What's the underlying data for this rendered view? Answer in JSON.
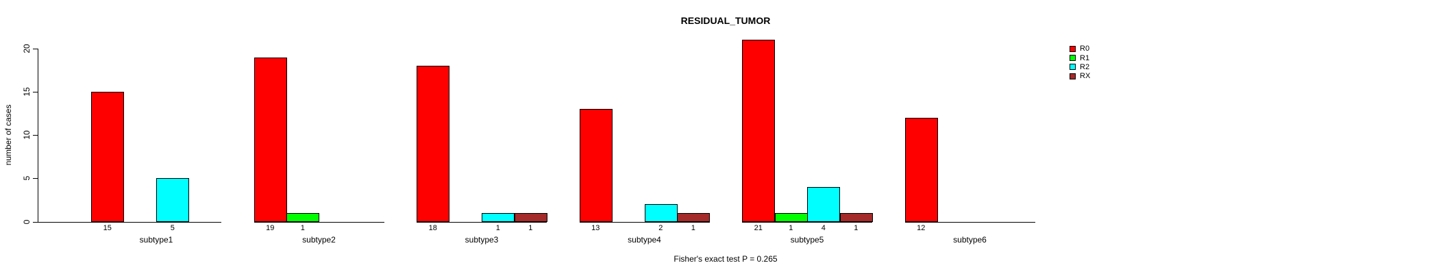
{
  "title": "RESIDUAL_TUMOR",
  "annotation": "Fisher's exact test P = 0.265",
  "chart_data": {
    "type": "bar",
    "title": "RESIDUAL_TUMOR",
    "xlabel": "",
    "ylabel": "number of cases",
    "annotation": "Fisher's exact test P = 0.265",
    "categories": [
      "subtype1",
      "subtype2",
      "subtype3",
      "subtype4",
      "subtype5",
      "subtype6"
    ],
    "series": [
      {
        "name": "R0",
        "color": "#FF0000",
        "values": [
          15,
          19,
          18,
          13,
          21,
          12
        ]
      },
      {
        "name": "R1",
        "color": "#00FF00",
        "values": [
          0,
          1,
          0,
          0,
          1,
          0
        ]
      },
      {
        "name": "R2",
        "color": "#00FFFF",
        "values": [
          5,
          0,
          1,
          2,
          4,
          0
        ]
      },
      {
        "name": "RX",
        "color": "#A52A2A",
        "values": [
          0,
          0,
          1,
          1,
          1,
          0
        ]
      }
    ],
    "ylim": [
      0,
      20
    ],
    "yticks": [
      0,
      5,
      10,
      15,
      20
    ],
    "grid": false,
    "legend_position": "right",
    "notes": "zero-value bars are not drawn; each bar's count is printed below the x-axis"
  },
  "legend": {
    "items": [
      {
        "label": "R0",
        "color": "#FF0000"
      },
      {
        "label": "R1",
        "color": "#00FF00"
      },
      {
        "label": "R2",
        "color": "#00FFFF"
      },
      {
        "label": "RX",
        "color": "#A52A2A"
      }
    ]
  }
}
